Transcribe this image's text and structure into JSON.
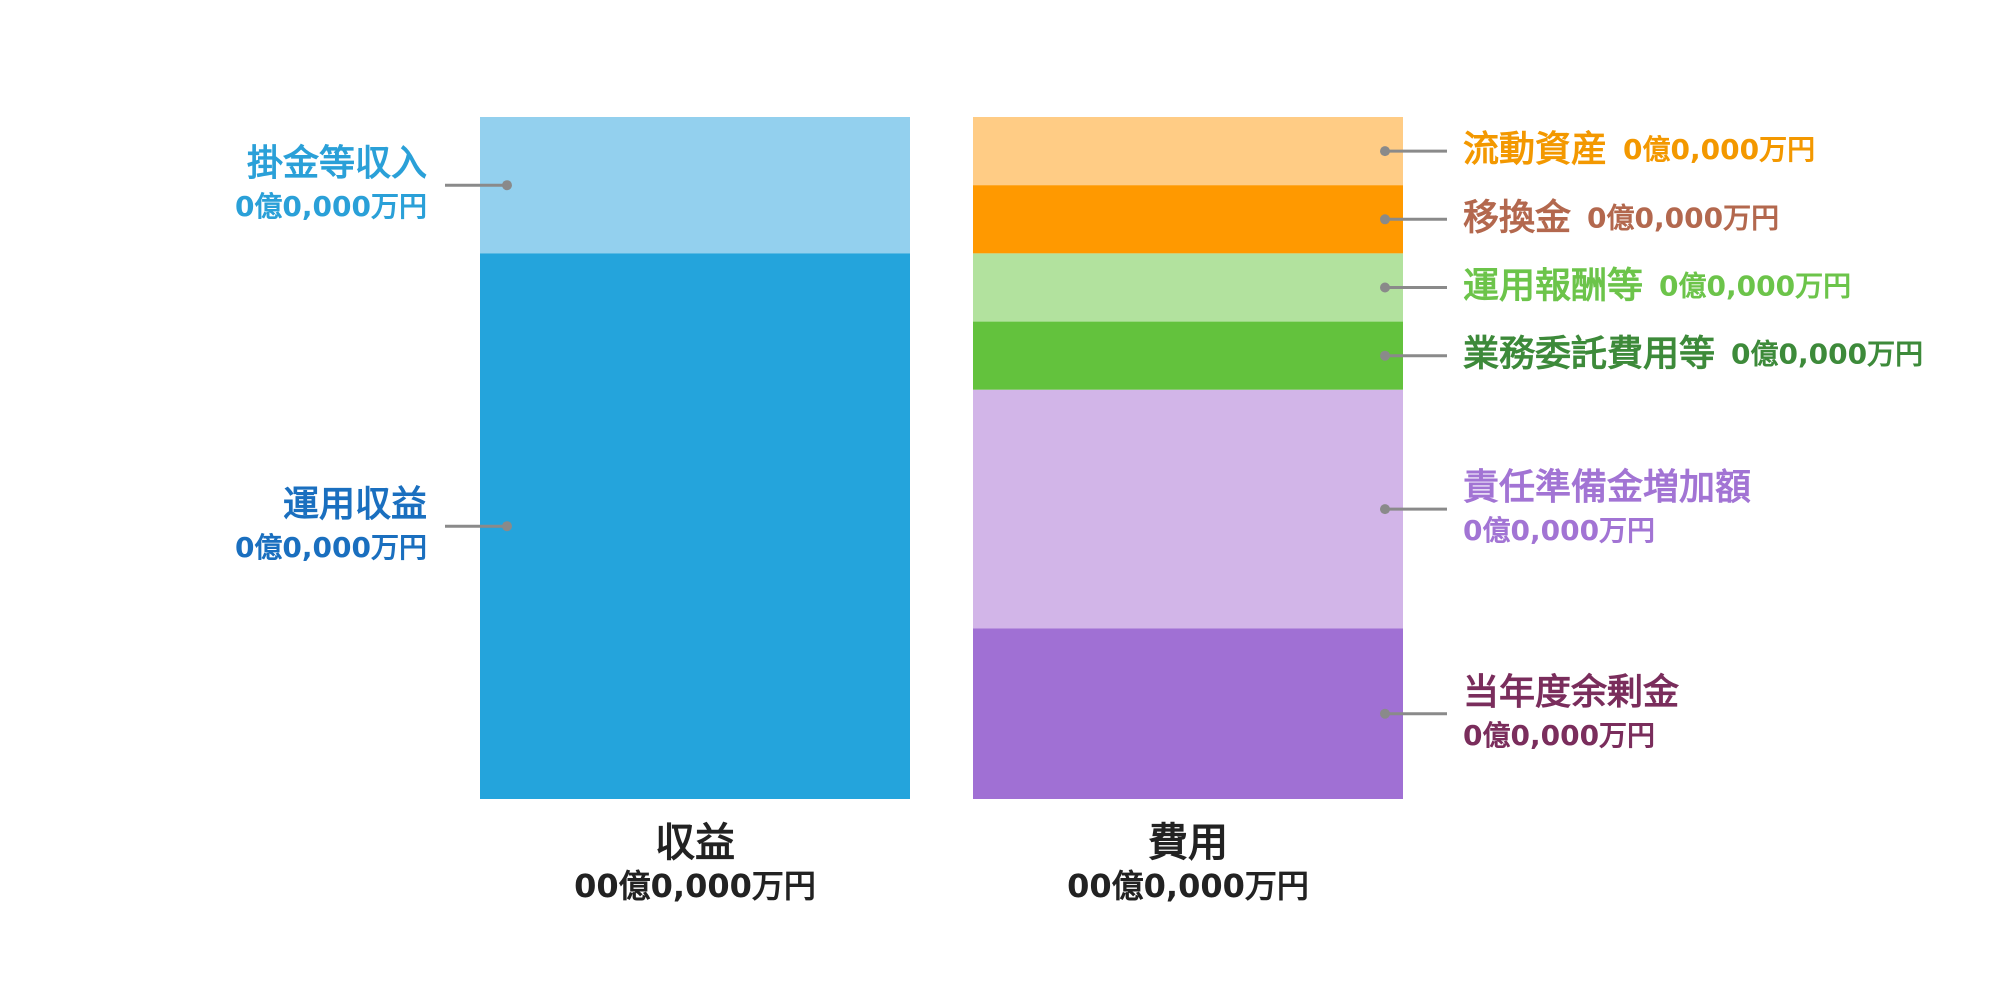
{
  "chart_data": {
    "type": "stacked_bar",
    "ylim": [
      0,
      100
    ],
    "bars": [
      {
        "name": "収益",
        "total": "00億0,000万円",
        "segments": [
          {
            "name": "掛金等収入",
            "amount": "0億0,000万円",
            "value": 20,
            "color": "#93d0ee",
            "label_color": "#2aa0d8"
          },
          {
            "name": "運用収益",
            "amount": "0億0,000万円",
            "value": 80,
            "color": "#24a4dc",
            "label_color": "#1a6fbf"
          }
        ]
      },
      {
        "name": "費用",
        "total": "00億0,000万円",
        "segments": [
          {
            "name": "流動資産",
            "amount": "0億0,000万円",
            "value": 10,
            "color": "#ffcc85",
            "label_color": "#f39800"
          },
          {
            "name": "移換金",
            "amount": "0億0,000万円",
            "value": 10,
            "color": "#ff9900",
            "label_color": "#b3684e"
          },
          {
            "name": "運用報酬等",
            "amount": "0億0,000万円",
            "value": 10,
            "color": "#b2e29e",
            "label_color": "#6cc44a"
          },
          {
            "name": "業務委託費用等",
            "amount": "0億0,000万円",
            "value": 10,
            "color": "#63c23d",
            "label_color": "#3d8a3a"
          },
          {
            "name": "責任準備金増加額",
            "amount": "0億0,000万円",
            "value": 35,
            "color": "#d2b5e8",
            "label_color": "#a274d4"
          },
          {
            "name": "当年度余剰金",
            "amount": "0億0,000万円",
            "value": 25,
            "color": "#a070d4",
            "label_color": "#7a2d5c"
          }
        ]
      }
    ]
  }
}
